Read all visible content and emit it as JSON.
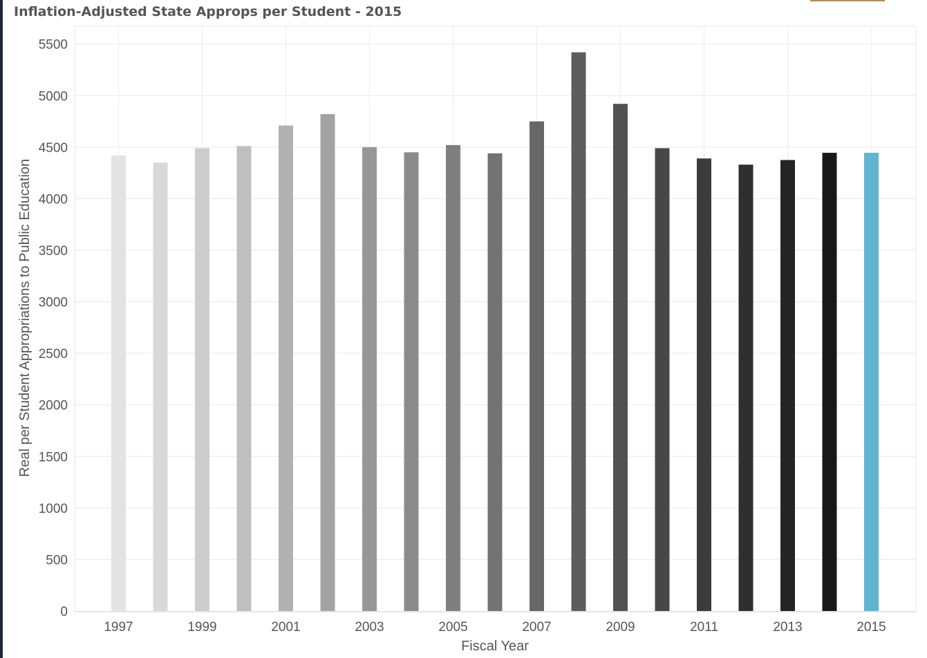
{
  "header": {
    "title": "Inflation-Adjusted State Approps per Student - 2015"
  },
  "chart_data": {
    "type": "bar",
    "title": "Inflation-Adjusted State Approps per Student - 2015",
    "xlabel": "Fiscal Year",
    "ylabel": "Real per Student Appropriations to Public Education",
    "ylim": [
      0,
      5700
    ],
    "yticks": [
      0,
      500,
      1000,
      1500,
      2000,
      2500,
      3000,
      3500,
      4000,
      4500,
      5000,
      5500
    ],
    "categories": [
      "1997",
      "1998",
      "1999",
      "2000",
      "2001",
      "2002",
      "2003",
      "2004",
      "2005",
      "2006",
      "2007",
      "2008",
      "2009",
      "2010",
      "2011",
      "2012",
      "2013",
      "2014",
      "2015"
    ],
    "x_tick_labels": [
      "1997",
      "1999",
      "2001",
      "2003",
      "2005",
      "2007",
      "2009",
      "2011",
      "2013",
      "2015"
    ],
    "values": [
      4420,
      4350,
      4490,
      4510,
      4710,
      4820,
      4500,
      4450,
      4520,
      4440,
      4750,
      5420,
      4920,
      4490,
      4390,
      4330,
      4375,
      4445,
      4445
    ],
    "bar_colors": [
      "#e3e3e3",
      "#d9d9d9",
      "#cdcdcd",
      "#bfbfbf",
      "#b1b1b1",
      "#a3a3a3",
      "#979797",
      "#8b8b8b",
      "#7f7f7f",
      "#737373",
      "#676767",
      "#5c5c5c",
      "#515151",
      "#474747",
      "#3b3b3b",
      "#2f2f2f",
      "#242424",
      "#181818",
      "#62b3d1"
    ],
    "grid": true,
    "legend": "none"
  }
}
